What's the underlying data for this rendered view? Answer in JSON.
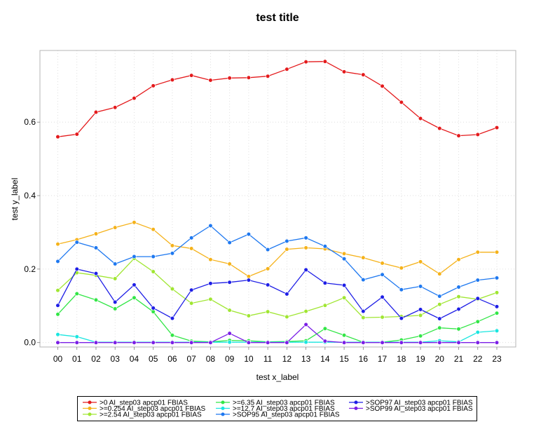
{
  "chart_data": {
    "type": "line",
    "title": "test title",
    "xlabel": "test x_label",
    "ylabel": "test y_label",
    "categories": [
      "00",
      "01",
      "02",
      "03",
      "04",
      "05",
      "06",
      "07",
      "08",
      "09",
      "10",
      "11",
      "12",
      "13",
      "14",
      "15",
      "16",
      "17",
      "18",
      "19",
      "20",
      "21",
      "22",
      "23"
    ],
    "ylim": [
      -0.012,
      0.795
    ],
    "yticks": [
      0.0,
      0.2,
      0.4,
      0.6
    ],
    "ytick_labels": [
      "0.0",
      "0.2",
      "0.4",
      "0.6"
    ],
    "grid": true,
    "legend_position": "bottom",
    "series": [
      {
        "name": ">0 AI_step03 apcp01 FBIAS",
        "color": "#e41a1c",
        "values": [
          0.56,
          0.567,
          0.627,
          0.64,
          0.665,
          0.699,
          0.715,
          0.727,
          0.714,
          0.72,
          0.721,
          0.725,
          0.744,
          0.764,
          0.765,
          0.737,
          0.729,
          0.698,
          0.654,
          0.61,
          0.583,
          0.563,
          0.566,
          0.585
        ]
      },
      {
        "name": ">=0.254 AI_step03 apcp01 FBIAS",
        "color": "#f5b21a",
        "values": [
          0.268,
          0.28,
          0.296,
          0.313,
          0.327,
          0.308,
          0.264,
          0.256,
          0.226,
          0.214,
          0.18,
          0.201,
          0.254,
          0.258,
          0.255,
          0.242,
          0.231,
          0.216,
          0.203,
          0.22,
          0.187,
          0.226,
          0.246,
          0.246
        ]
      },
      {
        "name": ">=2.54 AI_step03 apcp01 FBIAS",
        "color": "#a0e632",
        "values": [
          0.142,
          0.19,
          0.183,
          0.174,
          0.229,
          0.193,
          0.146,
          0.107,
          0.118,
          0.088,
          0.073,
          0.084,
          0.07,
          0.085,
          0.101,
          0.122,
          0.068,
          0.069,
          0.071,
          0.074,
          0.104,
          0.125,
          0.118,
          0.136
        ]
      },
      {
        "name": ">=6.35 AI_step03 apcp01 FBIAS",
        "color": "#32e646",
        "values": [
          0.077,
          0.133,
          0.116,
          0.092,
          0.122,
          0.084,
          0.02,
          0.004,
          0.002,
          0.006,
          0.005,
          0.002,
          0.003,
          0.005,
          0.038,
          0.02,
          0.001,
          0.001,
          0.007,
          0.018,
          0.04,
          0.037,
          0.057,
          0.08
        ]
      },
      {
        "name": ">=12.7 AI_step03 apcp01 FBIAS",
        "color": "#1ae6e0",
        "values": [
          0.022,
          0.016,
          0.001,
          0.001,
          0.001,
          0.001,
          0.001,
          0.001,
          0.001,
          0.001,
          0.001,
          0.001,
          0.001,
          0.001,
          0.001,
          0.001,
          0.001,
          0.001,
          0.001,
          0.001,
          0.005,
          0.002,
          0.028,
          0.032
        ]
      },
      {
        "name": ">SOP95 AI_step03 apcp01 FBIAS",
        "color": "#1e78f0",
        "values": [
          0.221,
          0.273,
          0.258,
          0.214,
          0.234,
          0.234,
          0.243,
          0.285,
          0.318,
          0.272,
          0.295,
          0.253,
          0.276,
          0.285,
          0.262,
          0.228,
          0.171,
          0.185,
          0.144,
          0.153,
          0.126,
          0.151,
          0.17,
          0.176
        ]
      },
      {
        "name": ">SOP97 AI_step03 apcp01 FBIAS",
        "color": "#1e1ee6",
        "values": [
          0.101,
          0.2,
          0.188,
          0.11,
          0.157,
          0.094,
          0.066,
          0.143,
          0.161,
          0.164,
          0.17,
          0.157,
          0.132,
          0.198,
          0.162,
          0.156,
          0.085,
          0.124,
          0.066,
          0.09,
          0.065,
          0.091,
          0.12,
          0.098
        ]
      },
      {
        "name": ">SOP99 AI_step03 apcp01 FBIAS",
        "color": "#7a1ee6",
        "values": [
          0.0,
          0.0,
          0.0,
          0.0,
          0.0,
          0.0,
          0.0,
          0.0,
          0.0,
          0.025,
          0.0,
          0.0,
          0.0,
          0.049,
          0.004,
          0.0,
          0.0,
          0.0,
          0.0,
          0.0,
          0.0,
          0.0,
          0.0,
          0.0
        ]
      }
    ]
  }
}
